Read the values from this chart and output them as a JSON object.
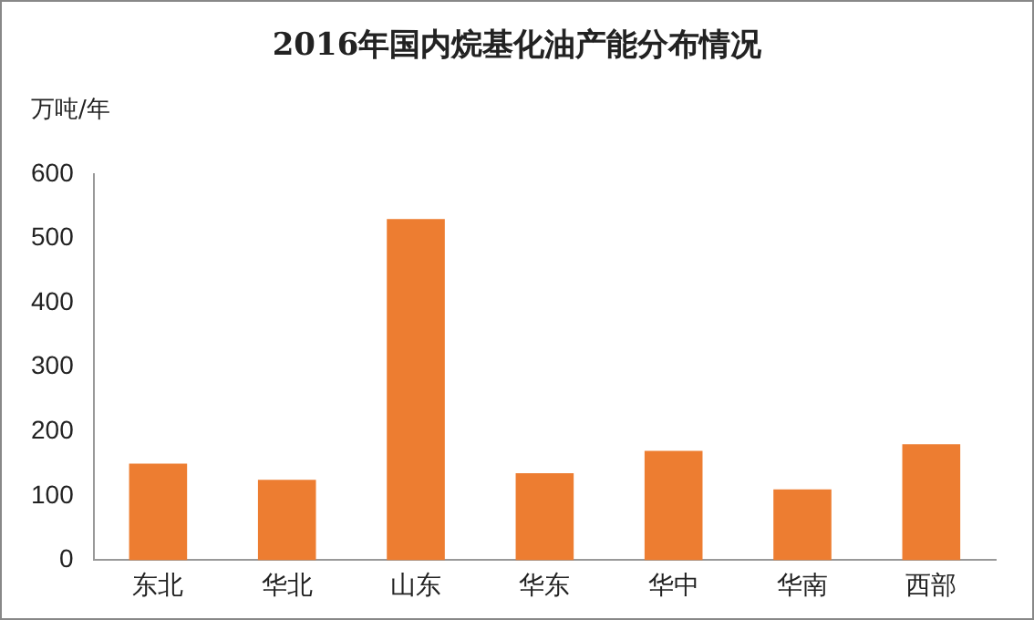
{
  "chart_data": {
    "type": "bar",
    "title": "2016年国内烷基化油产能分布情况",
    "ylabel": "万吨/年",
    "categories": [
      "东北",
      "华北",
      "山东",
      "华东",
      "华中",
      "华南",
      "西部"
    ],
    "values": [
      150,
      125,
      530,
      135,
      170,
      110,
      180
    ],
    "color": "#ed7d31",
    "ylim": [
      0,
      600
    ],
    "yticks": [
      0,
      100,
      200,
      300,
      400,
      500,
      600
    ],
    "grid": false,
    "legend": false
  }
}
